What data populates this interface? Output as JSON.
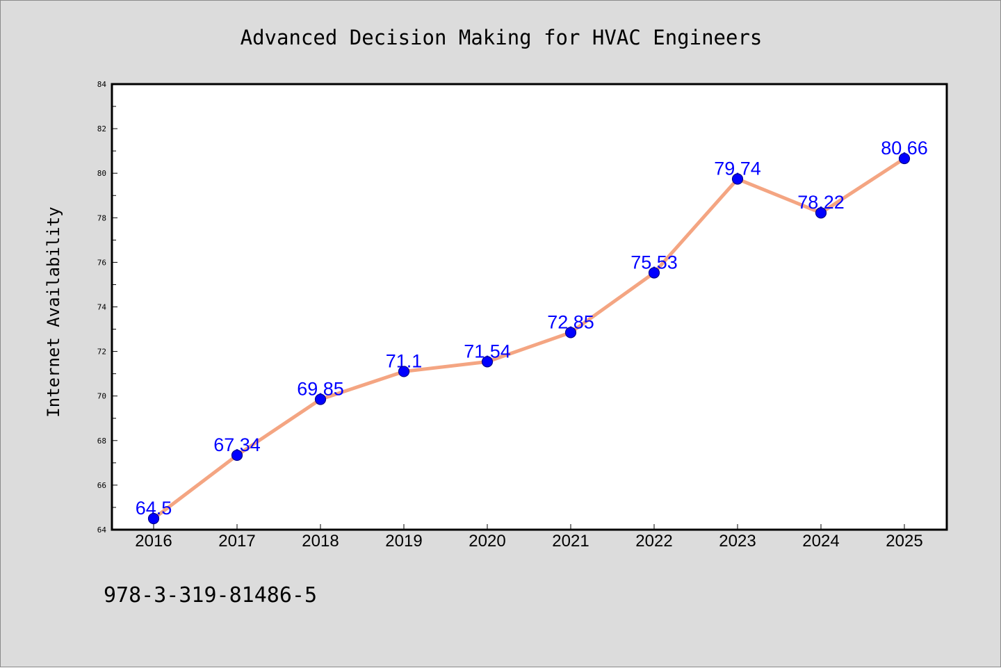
{
  "isbn_text": "978-3-319-81486-5",
  "colors": {
    "background": "#dcdcdc",
    "plot_background": "#ffffff",
    "line": "#f4a582",
    "marker": "#0000ff",
    "marker_edge": "#00008b",
    "data_label": "#0000ff",
    "text": "#000000"
  },
  "chart_data": {
    "type": "line",
    "title": "Advanced Decision Making for HVAC Engineers",
    "xlabel": "",
    "ylabel": "Internet Availability",
    "x": [
      "2016",
      "2017",
      "2018",
      "2019",
      "2020",
      "2021",
      "2022",
      "2023",
      "2024",
      "2025"
    ],
    "series": [
      {
        "values": [
          64.5,
          67.34,
          69.85,
          71.1,
          71.54,
          72.85,
          75.53,
          79.74,
          78.22,
          80.66
        ],
        "labels": [
          "64.5",
          "67.34",
          "69.85",
          "71.1",
          "71.54",
          "72.85",
          "75.53",
          "79.74",
          "78.22",
          "80.66"
        ]
      }
    ],
    "ylim": [
      64,
      84
    ],
    "yticks": [
      64,
      66,
      68,
      70,
      72,
      74,
      76,
      78,
      80,
      82,
      84
    ],
    "ytick_labels": [
      "64",
      "66",
      "68",
      "70",
      "72",
      "74",
      "76",
      "78",
      "80",
      "82",
      "84"
    ],
    "grid": false,
    "legend": "none"
  }
}
